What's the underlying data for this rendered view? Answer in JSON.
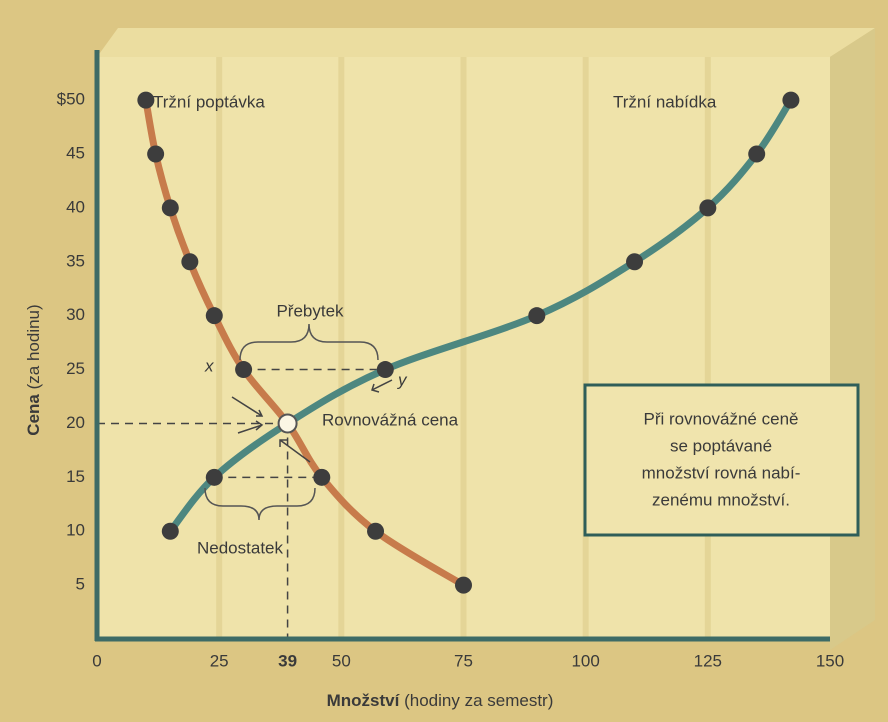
{
  "chart_data": {
    "type": "line",
    "x_label_bold": "Množství",
    "x_label_rest": "(hodiny za semestr)",
    "y_label_bold": "Cena",
    "y_label_rest": "(za hodinu)",
    "xlim": [
      0,
      150
    ],
    "xticks": [
      0,
      25,
      39,
      50,
      75,
      100,
      125,
      150
    ],
    "ylim": [
      0,
      54
    ],
    "yticks": [
      5,
      10,
      15,
      20,
      25,
      30,
      35,
      40,
      45,
      {
        "value": 50,
        "label": "$50"
      }
    ],
    "grid": true,
    "series": [
      {
        "name": "Tržní poptávka",
        "color": "#c77b4b",
        "x": [
          10,
          12,
          15,
          19,
          24,
          30,
          39,
          46,
          57,
          75
        ],
        "values": [
          50,
          45,
          40,
          35,
          30,
          25,
          20,
          15,
          10,
          5
        ]
      },
      {
        "name": "Tržní nabídka",
        "color": "#4d8780",
        "x": [
          15,
          24,
          39,
          59,
          90,
          110,
          125,
          135,
          142
        ],
        "values": [
          10,
          15,
          20,
          25,
          30,
          35,
          40,
          45,
          50
        ]
      }
    ],
    "equilibrium": {
      "x": 39,
      "y": 20,
      "label": "Rovnovážná cena"
    },
    "surplus": {
      "label": "Přebytek",
      "price": 25,
      "from": 30,
      "to": 59,
      "from_label": "x",
      "to_label": "y"
    },
    "shortage": {
      "label": "Nedostatek",
      "price": 15,
      "from": 24,
      "to": 46
    },
    "note": [
      "Při rovnovážné ceně",
      "se poptávané",
      "množství rovná nabí-",
      "zenému množství."
    ]
  }
}
